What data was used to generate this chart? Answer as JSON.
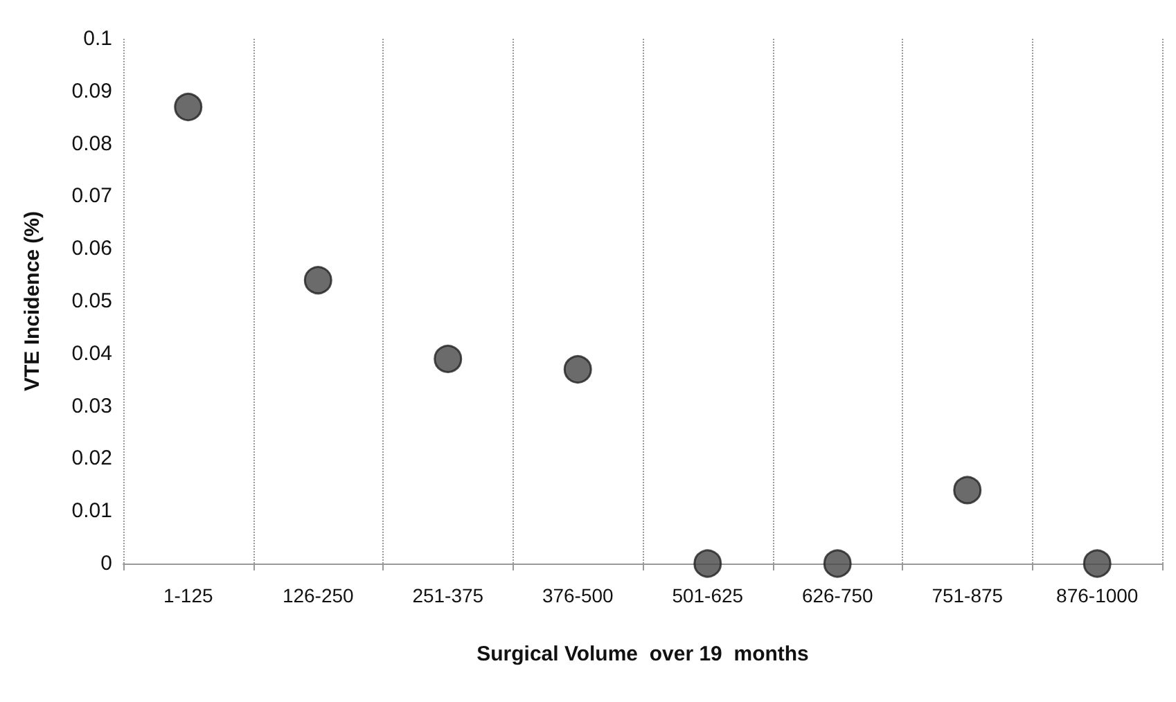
{
  "chart_data": {
    "type": "scatter",
    "xlabel": "Surgical Volume  over 19  months",
    "ylabel": "VTE Incidence (%)",
    "categories": [
      "1-125",
      "126-250",
      "251-375",
      "376-500",
      "501-625",
      "626-750",
      "751-875",
      "876-1000"
    ],
    "series": [
      {
        "color": "#464646",
        "values": [
          0.087,
          0.054,
          0.039,
          0.037,
          0,
          0,
          0.014,
          0
        ]
      }
    ],
    "ylim": [
      0,
      0.1
    ],
    "yticks": [
      0,
      0.01,
      0.02,
      0.03,
      0.04,
      0.05,
      0.06,
      0.07,
      0.08,
      0.09,
      0.1
    ],
    "grid": "x",
    "marker": "circle"
  }
}
